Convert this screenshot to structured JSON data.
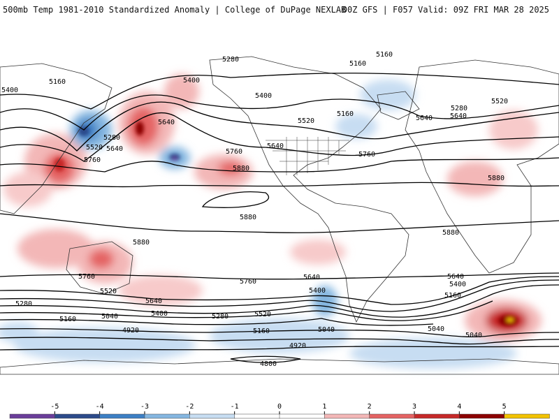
{
  "header": {
    "left_text": "500mb Temp 1981-2010 Standardized Anomaly | College of DuPage NEXLAB",
    "right_text": "00Z GFS | F057 Valid: 09Z FRI MAR 28 2025"
  },
  "map": {
    "projection": "cylindrical-equidistant",
    "contour_color": "#000000",
    "coastline_color": "#222222",
    "contour_labels": [
      "5400",
      "5160",
      "5280",
      "5160",
      "5160",
      "5400",
      "5400",
      "5280",
      "5520",
      "5160",
      "5520",
      "5280",
      "5520",
      "5640",
      "5640",
      "5640",
      "5640",
      "5640",
      "5760",
      "5760",
      "5760",
      "5880",
      "5880",
      "5880",
      "5880",
      "5880",
      "5760",
      "5640",
      "5400",
      "5520",
      "5280",
      "5160",
      "5040",
      "4920",
      "5760",
      "5640",
      "5400",
      "5520",
      "5280",
      "5160",
      "5040",
      "4920",
      "5640",
      "5400",
      "5160",
      "5040",
      "5040",
      "4800"
    ]
  },
  "legend": {
    "tick_labels": [
      "-5",
      "-4",
      "-3",
      "-2",
      "-1",
      "0",
      "1",
      "2",
      "3",
      "4",
      "5"
    ],
    "colors": [
      "#6a3d9a",
      "#2b4a8a",
      "#3c7fc4",
      "#84b6e0",
      "#c7ddf2",
      "#ffffff",
      "#ffffff",
      "#f3b7b7",
      "#e46363",
      "#c62828",
      "#8b0000",
      "#f2c200"
    ],
    "units": "standardized anomaly"
  }
}
